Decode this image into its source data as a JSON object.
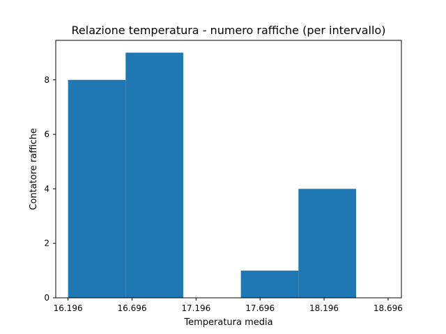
{
  "chart_data": {
    "type": "bar",
    "title": "Relazione temperatura - numero raffiche (per intervallo)",
    "xlabel": "Temperatura media",
    "ylabel": "Contatore raffiche",
    "bins": [
      {
        "x0": 16.196,
        "x1": 16.646,
        "value": 8
      },
      {
        "x0": 16.646,
        "x1": 17.096,
        "value": 9
      },
      {
        "x0": 17.096,
        "x1": 17.546,
        "value": 0
      },
      {
        "x0": 17.546,
        "x1": 17.996,
        "value": 1
      },
      {
        "x0": 17.996,
        "x1": 18.446,
        "value": 4
      }
    ],
    "xticks": [
      16.196,
      16.696,
      17.196,
      17.696,
      18.196,
      18.696
    ],
    "xtick_labels": [
      "16.196",
      "16.696",
      "17.196",
      "17.696",
      "18.196",
      "18.696"
    ],
    "yticks": [
      0,
      2,
      4,
      6,
      8
    ],
    "yticks_labels": [
      "0",
      "2",
      "4",
      "6",
      "8"
    ],
    "xlim": [
      16.1,
      18.8
    ],
    "ylim": [
      0,
      9.45
    ],
    "grid": false,
    "bar_color": "#1f77b4"
  }
}
